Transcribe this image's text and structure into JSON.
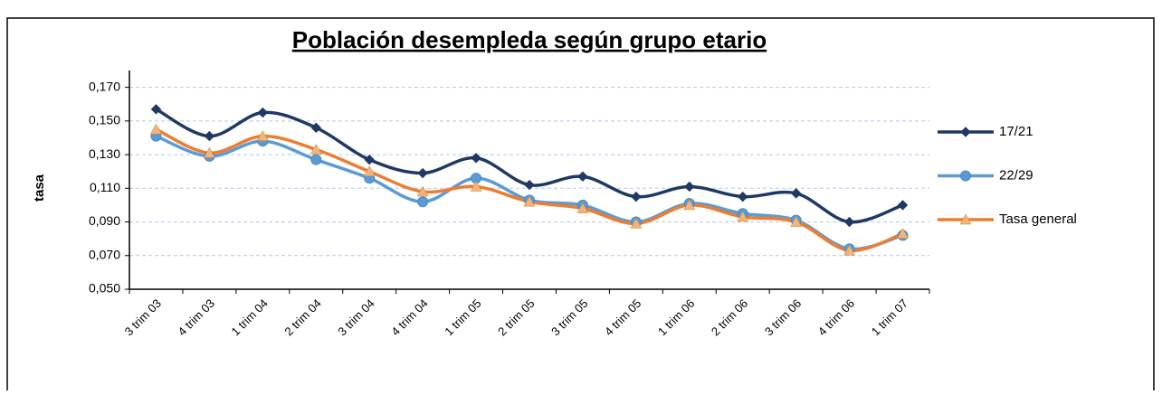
{
  "chart_data": {
    "type": "line",
    "title": "Población desempleda según grupo etario",
    "y_label": "tasa",
    "categories": [
      "3 trim 03",
      "4 trim 03",
      "1 trim 04",
      "2 trim 04",
      "3 trim 04",
      "4 trim 04",
      "1 trim 05",
      "2 trim 05",
      "3 trim 05",
      "4 trim 05",
      "1 trim 06",
      "2 trim 06",
      "3 trim 06",
      "4 trim 06",
      "1 trim 07"
    ],
    "series": [
      {
        "name": "17/21",
        "color": "#1f3864",
        "marker": "diamond",
        "values": [
          0.157,
          0.141,
          0.155,
          0.146,
          0.127,
          0.119,
          0.128,
          0.112,
          0.117,
          0.105,
          0.111,
          0.105,
          0.107,
          0.09,
          0.1
        ]
      },
      {
        "name": "22/29",
        "color": "#5b9bd5",
        "marker": "circle",
        "values": [
          0.141,
          0.129,
          0.138,
          0.127,
          0.116,
          0.102,
          0.116,
          0.103,
          0.1,
          0.09,
          0.101,
          0.095,
          0.091,
          0.074,
          0.082
        ]
      },
      {
        "name": "Tasa general",
        "color": "#ed7d31",
        "marker": "triangle",
        "values": [
          0.145,
          0.131,
          0.141,
          0.133,
          0.12,
          0.108,
          0.111,
          0.102,
          0.098,
          0.089,
          0.1,
          0.093,
          0.09,
          0.073,
          0.083
        ]
      }
    ],
    "ylim": [
      0.05,
      0.18
    ],
    "yticks": [
      {
        "value": 0.05,
        "label": "0,050"
      },
      {
        "value": 0.07,
        "label": "0,070"
      },
      {
        "value": 0.09,
        "label": "0,090"
      },
      {
        "value": 0.11,
        "label": "0,110"
      },
      {
        "value": 0.13,
        "label": "0,130"
      },
      {
        "value": 0.15,
        "label": "0,150"
      },
      {
        "value": 0.17,
        "label": "0,170"
      }
    ],
    "grid": true,
    "legend": "right",
    "smooth": true
  }
}
